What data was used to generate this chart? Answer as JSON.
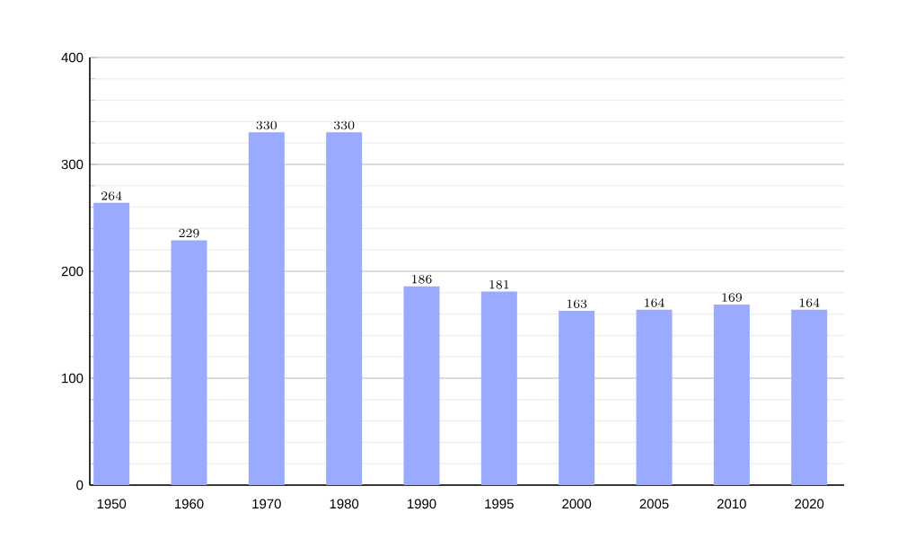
{
  "chart_data": {
    "type": "bar",
    "categories": [
      "1950",
      "1960",
      "1970",
      "1980",
      "1990",
      "1995",
      "2000",
      "2005",
      "2010",
      "2020"
    ],
    "values": [
      264,
      229,
      330,
      330,
      186,
      181,
      163,
      164,
      169,
      164
    ],
    "color": "#99aaff",
    "ylim": [
      0,
      400
    ],
    "yticks": [
      0,
      100,
      200,
      300,
      400
    ],
    "grid": true,
    "data_labels": true
  }
}
